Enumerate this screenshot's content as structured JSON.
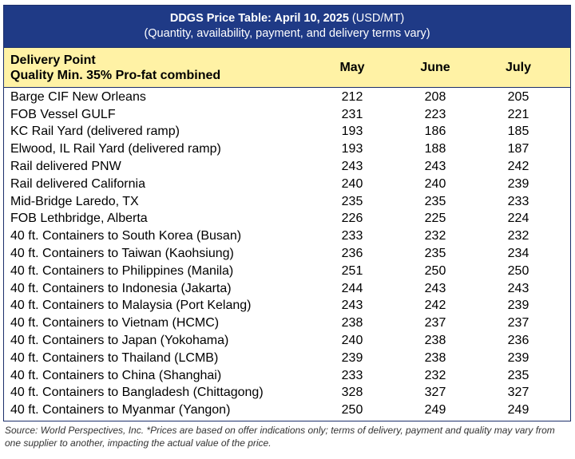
{
  "title": {
    "bold": "DDGS Price Table: April 10, 2025",
    "unit": " (USD/MT)",
    "subtitle": "(Quantity, availability, payment, and delivery terms vary)"
  },
  "header": {
    "line1": "Delivery Point",
    "line2": "Quality Min. 35% Pro-fat combined",
    "months": [
      "May",
      "June",
      "July"
    ]
  },
  "rows": [
    {
      "name": "Barge CIF New Orleans",
      "may": "212",
      "june": "208",
      "july": "205"
    },
    {
      "name": "FOB Vessel GULF",
      "may": "231",
      "june": "223",
      "july": "221"
    },
    {
      "name": "KC Rail Yard (delivered ramp)",
      "may": "193",
      "june": "186",
      "july": "185"
    },
    {
      "name": "Elwood, IL Rail Yard (delivered ramp)",
      "may": "193",
      "june": "188",
      "july": "187"
    },
    {
      "name": "Rail delivered PNW",
      "may": "243",
      "june": "243",
      "july": "242"
    },
    {
      "name": "Rail delivered California",
      "may": "240",
      "june": "240",
      "july": "239"
    },
    {
      "name": "Mid-Bridge Laredo, TX",
      "may": "235",
      "june": "235",
      "july": "233"
    },
    {
      "name": "FOB Lethbridge, Alberta",
      "may": "226",
      "june": "225",
      "july": "224"
    },
    {
      "name": "40 ft. Containers to South Korea (Busan)",
      "may": "233",
      "june": "232",
      "july": "232"
    },
    {
      "name": "40 ft. Containers to Taiwan (Kaohsiung)",
      "may": "236",
      "june": "235",
      "july": "234"
    },
    {
      "name": "40 ft. Containers to Philippines (Manila)",
      "may": "251",
      "june": "250",
      "july": "250"
    },
    {
      "name": "40 ft. Containers to Indonesia (Jakarta)",
      "may": "244",
      "june": "243",
      "july": "243"
    },
    {
      "name": "40 ft. Containers to Malaysia (Port Kelang)",
      "may": "243",
      "june": "242",
      "july": "239"
    },
    {
      "name": "40 ft. Containers to Vietnam (HCMC)",
      "may": "238",
      "june": "237",
      "july": "237"
    },
    {
      "name": "40 ft. Containers to Japan (Yokohama)",
      "may": "240",
      "june": "238",
      "july": "236"
    },
    {
      "name": "40 ft. Containers to Thailand (LCMB)",
      "may": "239",
      "june": "238",
      "july": "239"
    },
    {
      "name": "40 ft. Containers to China (Shanghai)",
      "may": "233",
      "june": "232",
      "july": "235"
    },
    {
      "name": "40 ft. Containers to Bangladesh (Chittagong)",
      "may": "328",
      "june": "327",
      "july": "327"
    },
    {
      "name": "40 ft. Containers to Myanmar (Yangon)",
      "may": "250",
      "june": "249",
      "july": "249"
    }
  ],
  "source": "Source: World Perspectives, Inc. *Prices are based on offer indications only; terms of delivery, payment and quality may vary from one supplier to another, impacting the actual value of the price."
}
